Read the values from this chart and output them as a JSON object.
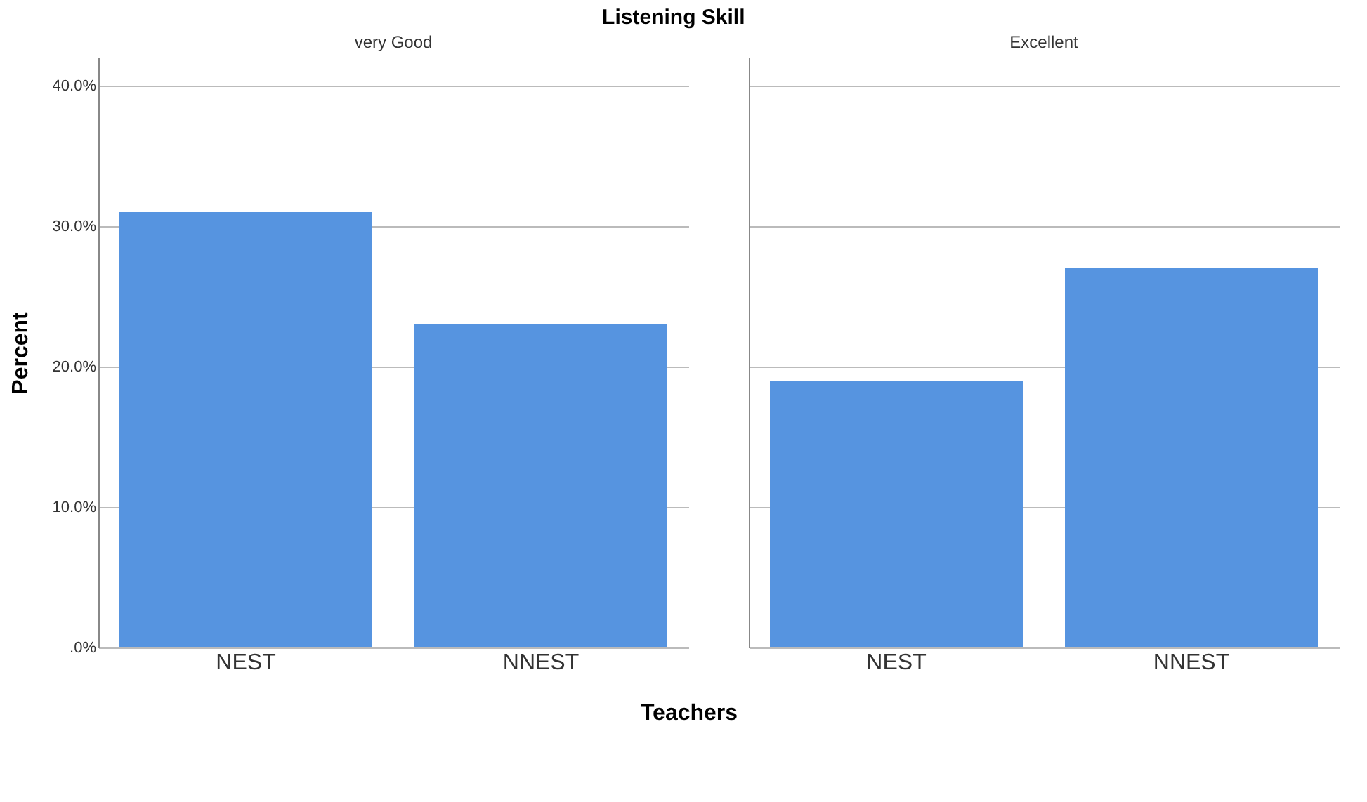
{
  "chart_data": [
    {
      "type": "bar",
      "title": "Listening Skill",
      "subtitle": "very Good",
      "xlabel": "Teachers",
      "ylabel": "Percent",
      "categories": [
        "NEST",
        "NNEST"
      ],
      "values": [
        31,
        23
      ],
      "color": "#5694e0",
      "ylim": [
        0,
        42
      ],
      "yticks": [
        {
          "value": 0,
          "label": ".0%"
        },
        {
          "value": 10,
          "label": "10.0%"
        },
        {
          "value": 20,
          "label": "20.0%"
        },
        {
          "value": 30,
          "label": "30.0%"
        },
        {
          "value": 40,
          "label": "40.0%"
        }
      ],
      "grid": "y"
    },
    {
      "type": "bar",
      "subtitle": "Excellent",
      "categories": [
        "NEST",
        "NNEST"
      ],
      "values": [
        19,
        27
      ],
      "color": "#5694e0",
      "ylim": [
        0,
        42
      ],
      "yticks": [
        0,
        10,
        20,
        30,
        40
      ],
      "grid": "y",
      "tick_labels": "x"
    }
  ]
}
